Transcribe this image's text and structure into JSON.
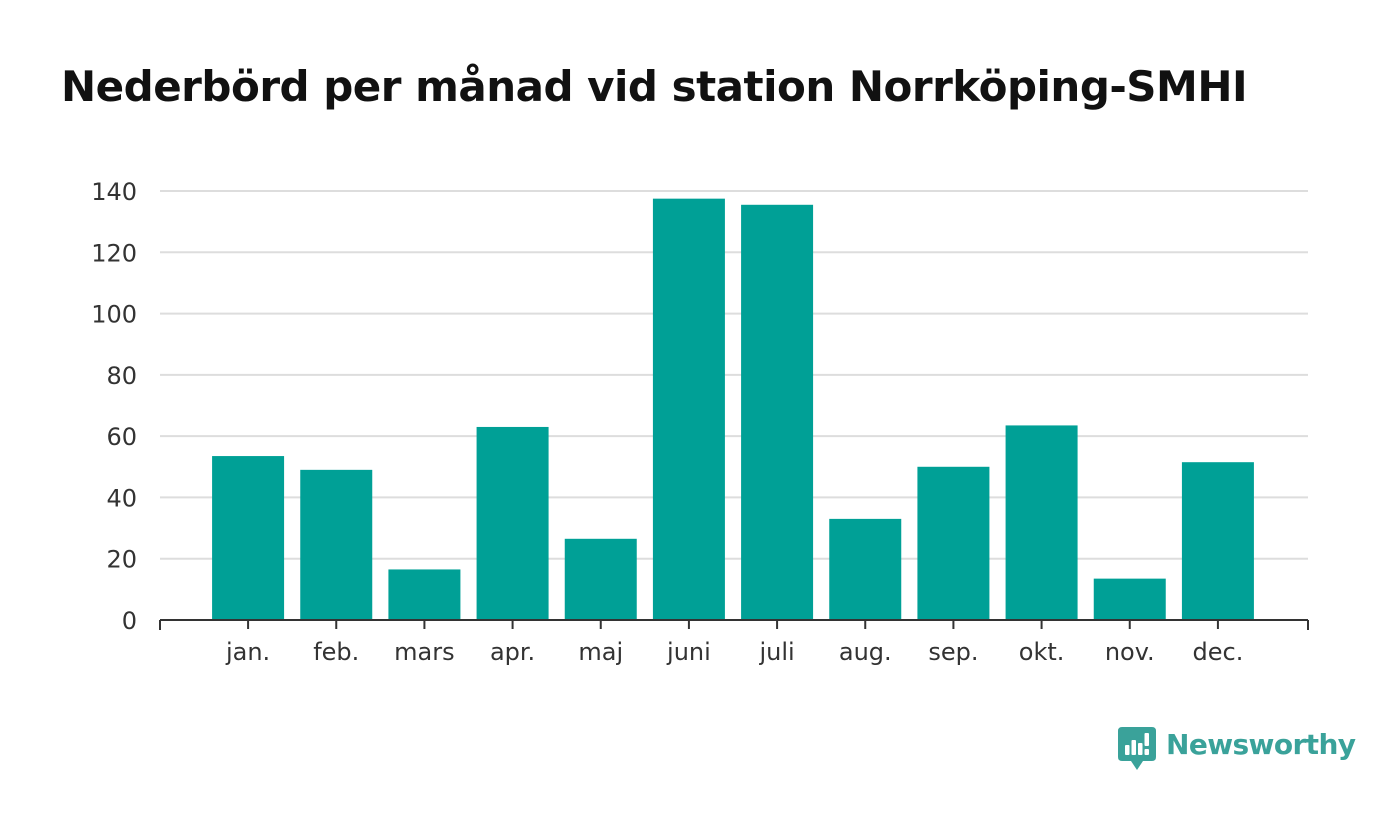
{
  "chart_data": {
    "type": "bar",
    "title": "Nederbörd per månad vid station Norrköping-SMHI",
    "categories": [
      "jan.",
      "feb.",
      "mars",
      "apr.",
      "maj",
      "juni",
      "juli",
      "aug.",
      "sep.",
      "okt.",
      "nov.",
      "dec."
    ],
    "values": [
      53.5,
      49,
      16.5,
      63,
      26.5,
      137.5,
      135.5,
      33,
      50,
      63.5,
      13.5,
      51.5
    ],
    "xlabel": "",
    "ylabel": "",
    "ylim": [
      0,
      140
    ],
    "yticks": [
      0,
      20,
      40,
      60,
      80,
      100,
      120,
      140
    ],
    "grid": true,
    "legend": "none",
    "bar_color": "#00a096",
    "grid_color": "#dddddd",
    "axis_color": "#333333"
  },
  "brand": {
    "name": "Newsworthy",
    "icon": "newsworthy-logo-icon",
    "color": "#3aa29a"
  }
}
